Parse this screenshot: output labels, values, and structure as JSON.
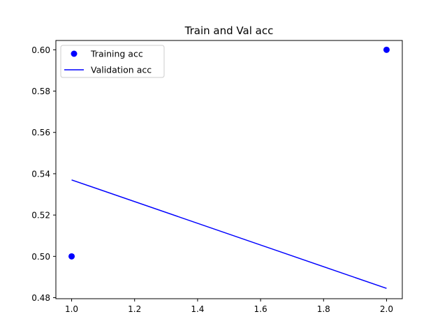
{
  "chart_data": {
    "type": "line",
    "title": "Train and Val acc",
    "xlabel": "",
    "ylabel": "",
    "xlim": [
      0.95,
      2.05
    ],
    "ylim": [
      0.4795,
      0.6045
    ],
    "x_ticks": [
      1.0,
      1.2,
      1.4,
      1.6,
      1.8,
      2.0
    ],
    "x_tick_labels": [
      "1.0",
      "1.2",
      "1.4",
      "1.6",
      "1.8",
      "2.0"
    ],
    "y_ticks": [
      0.48,
      0.5,
      0.52,
      0.54,
      0.56,
      0.58,
      0.6
    ],
    "y_tick_labels": [
      "0.48",
      "0.50",
      "0.52",
      "0.54",
      "0.56",
      "0.58",
      "0.60"
    ],
    "grid": false,
    "legend_placement": "top-left",
    "series": [
      {
        "name": "Training acc",
        "style": "markers",
        "color": "#0000ff",
        "x": [
          1.0,
          2.0
        ],
        "y": [
          0.5,
          0.6
        ]
      },
      {
        "name": "Validation acc",
        "style": "line",
        "color": "#0000ff",
        "x": [
          1.0,
          2.0
        ],
        "y": [
          0.537,
          0.4845
        ]
      }
    ]
  }
}
